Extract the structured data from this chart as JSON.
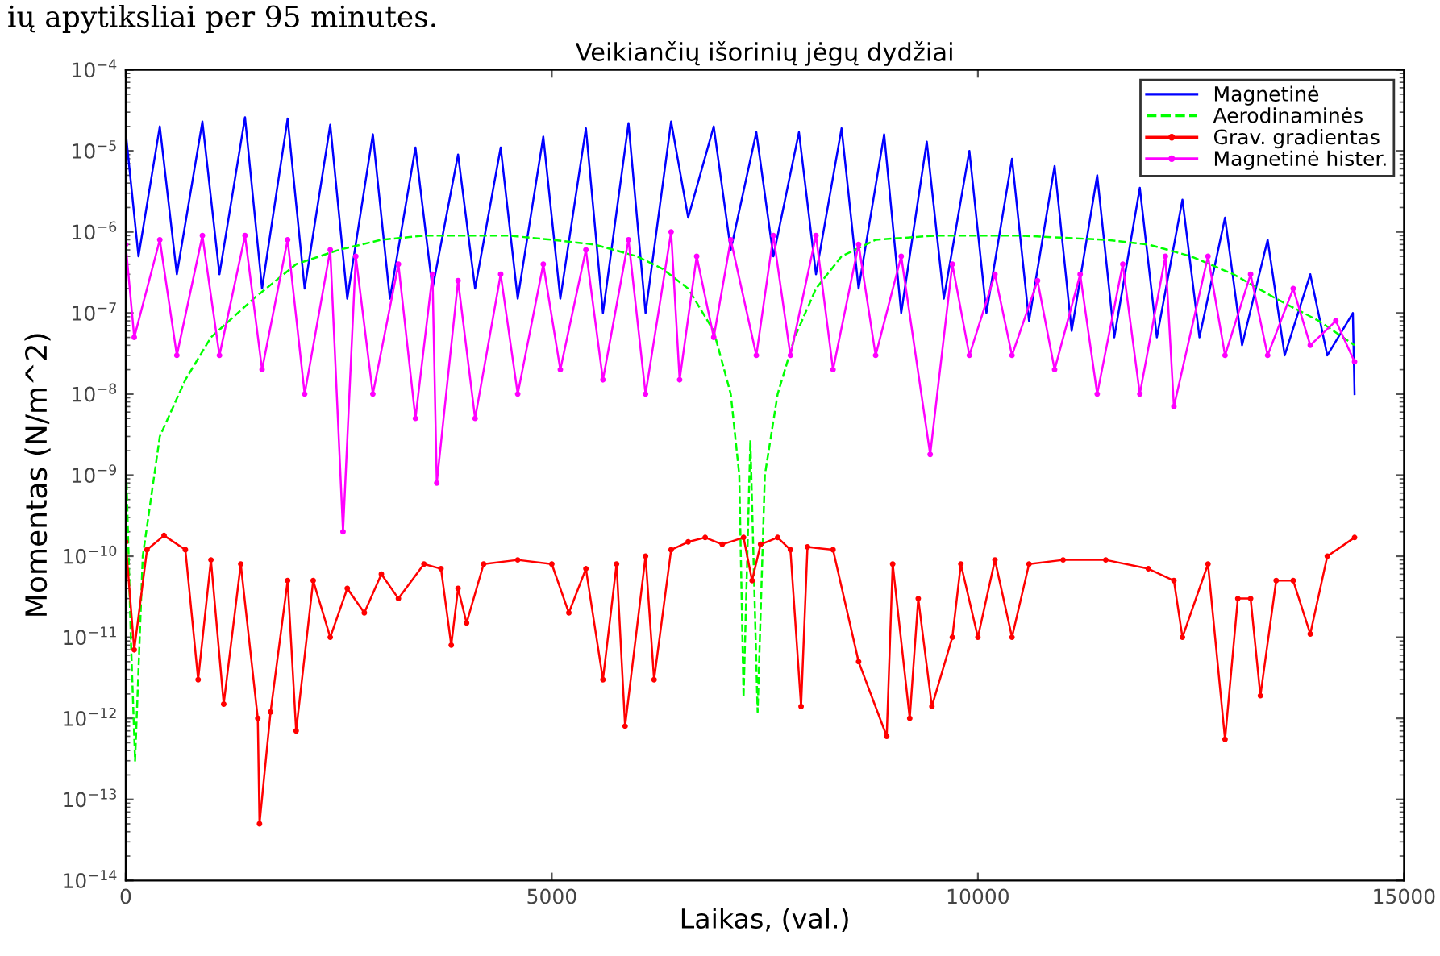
{
  "chart_data": {
    "type": "line",
    "title": "Veikiančių išorinių jėgų dydžiai",
    "xlabel": "Laikas, (val.)",
    "ylabel": "Momentas (N/m^2)",
    "annotations": [
      "ių apytiksliai per 95 minutes."
    ],
    "log": "y",
    "xlim": [
      0,
      15000
    ],
    "xticks": [
      0,
      5000,
      10000,
      15000
    ],
    "ylim": [
      1e-14,
      0.0001
    ],
    "yticks": [
      {
        "value": 1e-14,
        "label": "10$^{−14}$"
      },
      {
        "value": 1e-13,
        "label": "10$^{−13}$"
      },
      {
        "value": 1e-12,
        "label": "10$^{−12}$"
      },
      {
        "value": 1e-11,
        "label": "10$^{−11}$"
      },
      {
        "value": 1e-10,
        "label": "10$^{−10}$"
      },
      {
        "value": 1e-09,
        "label": "10$^{−9}$"
      },
      {
        "value": 1e-08,
        "label": "10$^{−8}$"
      },
      {
        "value": 1e-07,
        "label": "10$^{−7}$"
      },
      {
        "value": 1e-06,
        "label": "10$^{−6}$"
      },
      {
        "value": 1e-05,
        "label": "10$^{−5}$"
      },
      {
        "value": 0.0001,
        "label": "10$^{−4}$"
      }
    ],
    "grid": false,
    "legend": "top right",
    "series": [
      {
        "name": "Magnetinė",
        "color": "#0000ff",
        "line_style": "solid",
        "marker": "none",
        "x": [
          0,
          150,
          400,
          600,
          900,
          1100,
          1400,
          1600,
          1900,
          2100,
          2400,
          2600,
          2900,
          3100,
          3400,
          3600,
          3900,
          4100,
          4400,
          4600,
          4900,
          5100,
          5400,
          5600,
          5900,
          6100,
          6400,
          6600,
          6900,
          7100,
          7400,
          7600,
          7900,
          8100,
          8400,
          8600,
          8900,
          9100,
          9400,
          9600,
          9900,
          10100,
          10400,
          10600,
          10900,
          11100,
          11400,
          11600,
          11900,
          12100,
          12400,
          12600,
          12900,
          13100,
          13400,
          13600,
          13900,
          14100,
          14400,
          14420
        ],
        "values": [
          1.7e-05,
          5e-07,
          2e-05,
          3e-07,
          2.3e-05,
          3e-07,
          2.6e-05,
          2e-07,
          2.5e-05,
          2e-07,
          2.1e-05,
          1.5e-07,
          1.6e-05,
          1.5e-07,
          1.1e-05,
          2e-07,
          9e-06,
          2e-07,
          1.1e-05,
          1.5e-07,
          1.5e-05,
          1.5e-07,
          1.9e-05,
          1e-07,
          2.2e-05,
          1e-07,
          2.3e-05,
          1.5e-06,
          2e-05,
          6e-07,
          1.7e-05,
          5e-07,
          1.7e-05,
          3e-07,
          1.9e-05,
          2e-07,
          1.6e-05,
          1e-07,
          1.3e-05,
          1.5e-07,
          1e-05,
          1e-07,
          8e-06,
          8e-08,
          6.5e-06,
          6e-08,
          5e-06,
          5e-08,
          3.5e-06,
          5e-08,
          2.5e-06,
          5e-08,
          1.5e-06,
          4e-08,
          8e-07,
          3e-08,
          3e-07,
          3e-08,
          1e-07,
          1e-08
        ]
      },
      {
        "name": "Aerodinaminės",
        "color": "#00ff00",
        "line_style": "dashed",
        "marker": "none",
        "x": [
          0,
          60,
          110,
          200,
          400,
          700,
          1000,
          1500,
          2000,
          2500,
          3000,
          3500,
          4000,
          4500,
          5000,
          5500,
          6000,
          6300,
          6600,
          6900,
          7100,
          7200,
          7250,
          7330,
          7415,
          7500,
          7650,
          7850,
          8100,
          8400,
          8800,
          9500,
          10500,
          11500,
          12000,
          12500,
          13000,
          13500,
          14000,
          14420
        ],
        "values": [
          2e-09,
          1e-11,
          3e-13,
          1e-10,
          3e-09,
          1.5e-08,
          5e-08,
          1.5e-07,
          4e-07,
          6e-07,
          8e-07,
          9e-07,
          9e-07,
          9e-07,
          8e-07,
          7e-07,
          5e-07,
          3.5e-07,
          2e-07,
          6e-08,
          1e-08,
          1e-09,
          1.8e-12,
          2.7e-09,
          1.2e-12,
          1e-09,
          1e-08,
          5e-08,
          2e-07,
          5e-07,
          8e-07,
          9e-07,
          9e-07,
          8e-07,
          7e-07,
          5e-07,
          3e-07,
          1.5e-07,
          8e-08,
          4e-08
        ]
      },
      {
        "name": "Grav. gradientas",
        "color": "#ff0000",
        "line_style": "solid",
        "marker": "circle",
        "x": [
          0,
          100,
          250,
          450,
          700,
          850,
          1000,
          1150,
          1350,
          1550,
          1570,
          1700,
          1900,
          2000,
          2200,
          2400,
          2600,
          2800,
          3000,
          3200,
          3500,
          3700,
          3820,
          3900,
          4000,
          4200,
          4600,
          5000,
          5200,
          5400,
          5600,
          5760,
          5860,
          6100,
          6200,
          6400,
          6600,
          6800,
          7000,
          7250,
          7350,
          7450,
          7650,
          7800,
          7925,
          8000,
          8300,
          8600,
          8930,
          9000,
          9200,
          9300,
          9460,
          9700,
          9800,
          10000,
          10200,
          10400,
          10600,
          11000,
          11500,
          12000,
          12300,
          12400,
          12700,
          12900,
          13050,
          13200,
          13315,
          13500,
          13700,
          13900,
          14100,
          14420
        ],
        "values": [
          1.5e-10,
          7e-12,
          1.2e-10,
          1.8e-10,
          1.2e-10,
          3e-12,
          9e-11,
          1.5e-12,
          8e-11,
          1e-12,
          5e-14,
          1.2e-12,
          5e-11,
          7e-13,
          5e-11,
          1e-11,
          4e-11,
          2e-11,
          6e-11,
          3e-11,
          8e-11,
          7e-11,
          8e-12,
          4e-11,
          1.5e-11,
          8e-11,
          9e-11,
          8e-11,
          2e-11,
          7e-11,
          3e-12,
          8e-11,
          8e-13,
          1e-10,
          3e-12,
          1.2e-10,
          1.5e-10,
          1.7e-10,
          1.4e-10,
          1.7e-10,
          5e-11,
          1.4e-10,
          1.7e-10,
          1.2e-10,
          1.4e-12,
          1.3e-10,
          1.2e-10,
          5e-12,
          6e-13,
          8e-11,
          1e-12,
          3e-11,
          1.4e-12,
          1e-11,
          8e-11,
          1e-11,
          9e-11,
          1e-11,
          8e-11,
          9e-11,
          9e-11,
          7e-11,
          5e-11,
          1e-11,
          8e-11,
          5.5e-13,
          3e-11,
          3e-11,
          1.9e-12,
          5e-11,
          5e-11,
          1.1e-11,
          1e-10,
          1.7e-10
        ]
      },
      {
        "name": "Magnetinė hister.",
        "color": "#ff00ff",
        "line_style": "solid",
        "marker": "circle",
        "x": [
          0,
          100,
          400,
          600,
          900,
          1100,
          1400,
          1600,
          1900,
          2100,
          2400,
          2550,
          2700,
          2900,
          3200,
          3400,
          3600,
          3650,
          3900,
          4100,
          4400,
          4600,
          4900,
          5100,
          5400,
          5600,
          5900,
          6100,
          6400,
          6500,
          6700,
          6900,
          7100,
          7400,
          7600,
          7800,
          8100,
          8300,
          8600,
          8800,
          9100,
          9440,
          9700,
          9900,
          10200,
          10400,
          10700,
          10900,
          11200,
          11400,
          11700,
          11900,
          12200,
          12300,
          12700,
          12900,
          13200,
          13400,
          13700,
          13900,
          14200,
          14420
        ],
        "values": [
          7e-07,
          5e-08,
          8e-07,
          3e-08,
          9e-07,
          3e-08,
          9e-07,
          2e-08,
          8e-07,
          1e-08,
          6e-07,
          2e-10,
          5e-07,
          1e-08,
          4e-07,
          5e-09,
          3e-07,
          8e-10,
          2.5e-07,
          5e-09,
          3e-07,
          1e-08,
          4e-07,
          2e-08,
          6e-07,
          1.5e-08,
          8e-07,
          1e-08,
          1e-06,
          1.5e-08,
          5e-07,
          5e-08,
          8e-07,
          3e-08,
          9e-07,
          3e-08,
          9e-07,
          2e-08,
          7e-07,
          3e-08,
          5e-07,
          1.8e-09,
          4e-07,
          3e-08,
          3e-07,
          3e-08,
          2.5e-07,
          2e-08,
          3e-07,
          1e-08,
          4e-07,
          1e-08,
          5e-07,
          7e-09,
          5e-07,
          3e-08,
          3e-07,
          3e-08,
          2e-07,
          4e-08,
          8e-08,
          2.5e-08
        ]
      }
    ]
  }
}
